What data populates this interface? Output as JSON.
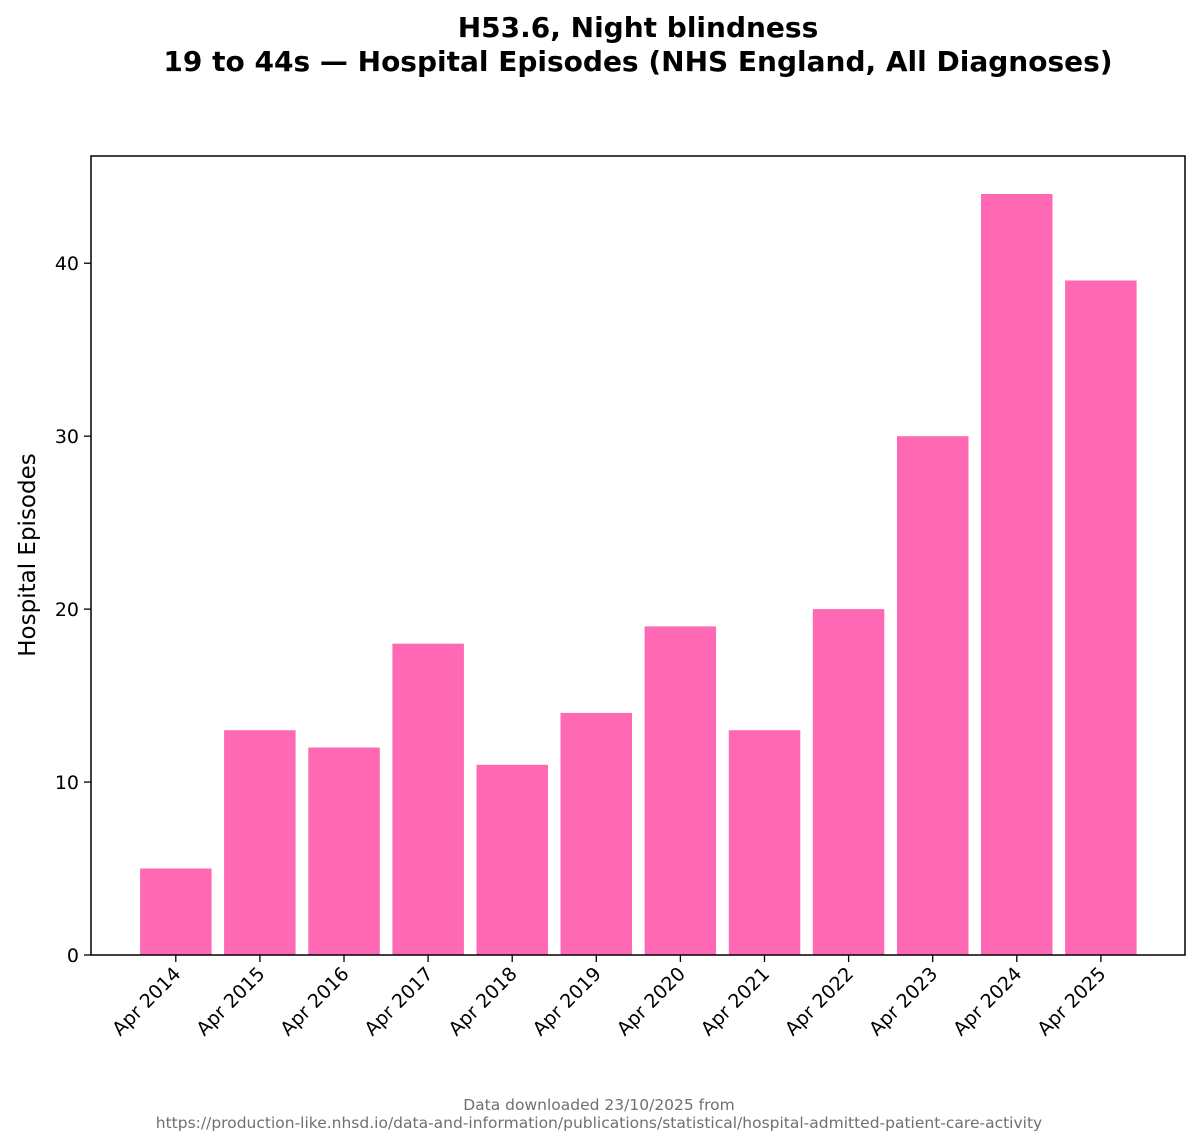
{
  "chart_data": {
    "type": "bar",
    "title_line1": "H53.6, Night blindness",
    "title_line2": "19 to 44s — Hospital Episodes (NHS England, All Diagnoses)",
    "xlabel": "",
    "ylabel": "Hospital Episodes",
    "categories": [
      "Apr 2014",
      "Apr 2015",
      "Apr 2016",
      "Apr 2017",
      "Apr 2018",
      "Apr 2019",
      "Apr 2020",
      "Apr 2021",
      "Apr 2022",
      "Apr 2023",
      "Apr 2024",
      "Apr 2025"
    ],
    "values": [
      5,
      13,
      12,
      18,
      11,
      14,
      19,
      13,
      20,
      30,
      44,
      39
    ],
    "ylim": [
      0,
      46.2
    ],
    "yticks": [
      0,
      10,
      20,
      30,
      40
    ],
    "grid": false,
    "bar_color": "#ff69b4"
  },
  "footer": {
    "line1": "Data downloaded 23/10/2025 from",
    "line2": "https://production-like.nhsd.io/data-and-information/publications/statistical/hospital-admitted-patient-care-activity"
  }
}
